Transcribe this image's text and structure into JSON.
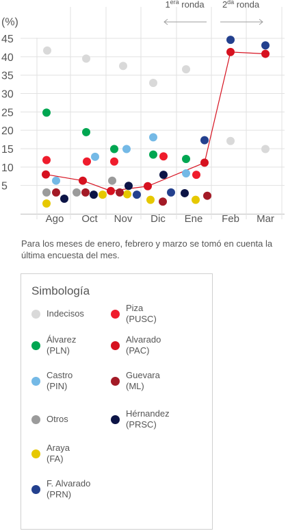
{
  "chart_data": {
    "type": "scatter",
    "y_unit_label": "(%)",
    "ylim": [
      0,
      48
    ],
    "y_ticks": [
      5,
      10,
      15,
      20,
      25,
      30,
      35,
      40,
      45
    ],
    "categories": [
      "Ago",
      "Oct",
      "Nov",
      "Dic",
      "Ene",
      "Feb",
      "Mar"
    ],
    "rounds": [
      {
        "label_sup": "era",
        "label_pre": "1",
        "label_post": " ronda",
        "direction": "left"
      },
      {
        "label_sup": "da",
        "label_pre": "2",
        "label_post": " ronda",
        "direction": "right"
      }
    ],
    "series": [
      {
        "name": "Indecisos",
        "color": "#d9d9d9",
        "points": [
          {
            "cat": "Ago",
            "y": 41.7
          },
          {
            "cat": "Oct",
            "y": 39.5
          },
          {
            "cat": "Nov",
            "y": 37.5
          },
          {
            "cat": "Dic",
            "y": 32.9
          },
          {
            "cat": "Ene",
            "y": 36.6
          },
          {
            "cat": "Feb",
            "y": 17.1
          },
          {
            "cat": "Mar",
            "y": 14.9
          }
        ]
      },
      {
        "name": "Álvarez (PLN)",
        "color": "#00a651",
        "points": [
          {
            "cat": "Ago",
            "y": 24.8
          },
          {
            "cat": "Oct",
            "y": 19.5
          },
          {
            "cat": "Nov",
            "y": 14.9
          },
          {
            "cat": "Dic",
            "y": 13.4
          },
          {
            "cat": "Ene",
            "y": 12.2
          }
        ]
      },
      {
        "name": "Castro (PIN)",
        "color": "#74b9e6",
        "points": [
          {
            "cat": "Ago",
            "y": 6.3
          },
          {
            "cat": "Oct",
            "y": 12.8
          },
          {
            "cat": "Nov",
            "y": 14.9
          },
          {
            "cat": "Dic",
            "y": 18.1
          },
          {
            "cat": "Ene",
            "y": 8.3
          }
        ]
      },
      {
        "name": "Otros",
        "color": "#9b9b9b",
        "points": [
          {
            "cat": "Ago",
            "y": 3.1
          },
          {
            "cat": "Oct",
            "y": 3.1
          },
          {
            "cat": "Nov",
            "y": 6.3
          }
        ]
      },
      {
        "name": "Araya (FA)",
        "color": "#e6c800",
        "points": [
          {
            "cat": "Ago",
            "y": 0.1
          },
          {
            "cat": "Oct",
            "y": 2.5
          },
          {
            "cat": "Nov",
            "y": 2.6
          },
          {
            "cat": "Dic",
            "y": 1.1
          },
          {
            "cat": "Ene",
            "y": 1.1
          }
        ]
      },
      {
        "name": "F. Alvarado (PRN)",
        "color": "#23408e",
        "points": [
          {
            "cat": "Nov",
            "y": 2.5
          },
          {
            "cat": "Dic",
            "y": 3.1
          },
          {
            "cat": "Ene",
            "y": 17.3
          },
          {
            "cat": "Feb",
            "y": 44.6
          },
          {
            "cat": "Mar",
            "y": 43.1
          }
        ]
      },
      {
        "name": "Piza (PUSC)",
        "color": "#ef1c2c",
        "points": [
          {
            "cat": "Ago",
            "y": 11.9
          },
          {
            "cat": "Oct",
            "y": 11.5
          },
          {
            "cat": "Nov",
            "y": 11.5
          },
          {
            "cat": "Dic",
            "y": 12.9
          },
          {
            "cat": "Ene",
            "y": 7.9
          }
        ]
      },
      {
        "name": "Alvarado (PAC)",
        "color": "#d6111f",
        "line": true,
        "points": [
          {
            "cat": "Ago",
            "y": 8.0
          },
          {
            "cat": "Oct",
            "y": 6.3
          },
          {
            "cat": "Nov",
            "y": 3.5
          },
          {
            "cat": "Dic",
            "y": 4.8
          },
          {
            "cat": "Ene",
            "y": 11.2
          },
          {
            "cat": "Feb",
            "y": 41.3
          },
          {
            "cat": "Mar",
            "y": 40.8
          }
        ]
      },
      {
        "name": "Guevara (ML)",
        "color": "#a31a26",
        "points": [
          {
            "cat": "Ago",
            "y": 3.1
          },
          {
            "cat": "Oct",
            "y": 3.1
          },
          {
            "cat": "Nov",
            "y": 3.1
          },
          {
            "cat": "Dic",
            "y": 0.6
          },
          {
            "cat": "Ene",
            "y": 2.2
          }
        ]
      },
      {
        "name": "Hérnandez (PRSC)",
        "color": "#0c1446",
        "points": [
          {
            "cat": "Ago",
            "y": 1.4
          },
          {
            "cat": "Oct",
            "y": 2.5
          },
          {
            "cat": "Nov",
            "y": 4.9
          },
          {
            "cat": "Dic",
            "y": 7.9
          },
          {
            "cat": "Ene",
            "y": 2.9
          }
        ]
      }
    ]
  },
  "note": "Para los meses de enero, febrero y marzo se tomó en cuenta la última encuesta del mes.",
  "legend": {
    "title": "Simbología",
    "items": [
      {
        "name": "Indecisos",
        "sub": "",
        "color": "#d9d9d9"
      },
      {
        "name": "Piza",
        "sub": "(PUSC)",
        "color": "#ef1c2c"
      },
      {
        "name": "Álvarez",
        "sub": "(PLN)",
        "color": "#00a651"
      },
      {
        "name": "Alvarado",
        "sub": "(PAC)",
        "color": "#d6111f"
      },
      {
        "name": "Castro",
        "sub": "(PIN)",
        "color": "#74b9e6"
      },
      {
        "name": "Guevara",
        "sub": "(ML)",
        "color": "#a31a26"
      },
      {
        "name": "Otros",
        "sub": "",
        "color": "#9b9b9b"
      },
      {
        "name": "Hérnandez",
        "sub": "(PRSC)",
        "color": "#0c1446"
      },
      {
        "name": "Araya",
        "sub": "(FA)",
        "color": "#e6c800"
      },
      {
        "name": "",
        "sub": "",
        "color": ""
      },
      {
        "name": "F. Alvarado",
        "sub": "(PRN)",
        "color": "#23408e"
      }
    ]
  }
}
